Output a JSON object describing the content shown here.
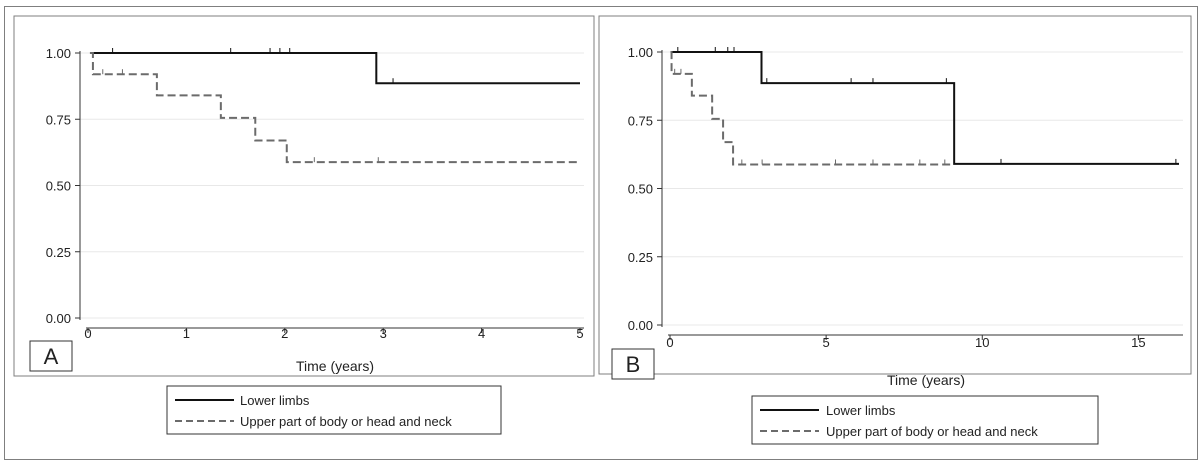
{
  "figure": {
    "panels": [
      {
        "panel_label": "A",
        "legend": {
          "lower_label": "Lower limbs",
          "upper_label": "Upper part of body or head and neck"
        }
      },
      {
        "panel_label": "B",
        "legend": {
          "lower_label": "Lower limbs",
          "upper_label": "Upper part of body or head and neck"
        }
      }
    ]
  },
  "colors": {
    "lower_series": "#111111",
    "upper_series": "#6b6b6b",
    "grid": "#e8e8e8",
    "frame": "#7f7f7f"
  },
  "chart_data": [
    {
      "type": "line",
      "subtype": "kaplan-meier step",
      "panel": "A",
      "xlabel": "Time (years)",
      "ylabel": "",
      "xlim": [
        0,
        5
      ],
      "ylim": [
        0,
        1
      ],
      "xticks": [
        0,
        1,
        2,
        3,
        4,
        5
      ],
      "yticks": [
        0.0,
        0.25,
        0.5,
        0.75,
        1.0
      ],
      "grid": "horizontal",
      "legend_position": "bottom",
      "series": [
        {
          "name": "Lower limbs",
          "style": "solid",
          "steps": [
            [
              0.02,
              1.0
            ],
            [
              2.93,
              0.886
            ],
            [
              5.0,
              0.886
            ]
          ],
          "censored": [
            [
              0.25,
              1.0
            ],
            [
              1.45,
              1.0
            ],
            [
              1.85,
              1.0
            ],
            [
              1.95,
              1.0
            ],
            [
              2.05,
              1.0
            ],
            [
              3.1,
              0.886
            ]
          ]
        },
        {
          "name": "Upper part of body or head and neck",
          "style": "dashed",
          "steps": [
            [
              0.02,
              1.0
            ],
            [
              0.05,
              0.92
            ],
            [
              0.7,
              0.84
            ],
            [
              1.35,
              0.755
            ],
            [
              1.7,
              0.67
            ],
            [
              2.02,
              0.588
            ],
            [
              5.0,
              0.588
            ]
          ],
          "censored": [
            [
              0.15,
              0.92
            ],
            [
              0.35,
              0.92
            ],
            [
              2.3,
              0.588
            ],
            [
              2.95,
              0.588
            ]
          ]
        }
      ]
    },
    {
      "type": "line",
      "subtype": "kaplan-meier step",
      "panel": "B",
      "xlabel": "Time (years)",
      "ylabel": "",
      "xlim": [
        0,
        16.3
      ],
      "ylim": [
        0,
        1
      ],
      "xticks": [
        0,
        5,
        10,
        15
      ],
      "yticks": [
        0.0,
        0.25,
        0.5,
        0.75,
        1.0
      ],
      "grid": "horizontal",
      "legend_position": "bottom",
      "series": [
        {
          "name": "Lower limbs",
          "style": "solid",
          "steps": [
            [
              0.02,
              1.0
            ],
            [
              2.93,
              0.886
            ],
            [
              9.1,
              0.59
            ],
            [
              16.3,
              0.59
            ]
          ],
          "censored": [
            [
              0.25,
              1.0
            ],
            [
              1.45,
              1.0
            ],
            [
              1.85,
              1.0
            ],
            [
              2.05,
              1.0
            ],
            [
              3.1,
              0.886
            ],
            [
              5.8,
              0.886
            ],
            [
              6.5,
              0.886
            ],
            [
              8.85,
              0.886
            ],
            [
              10.6,
              0.59
            ],
            [
              16.2,
              0.59
            ]
          ]
        },
        {
          "name": "Upper part of body or head and neck",
          "style": "dashed",
          "steps": [
            [
              0.02,
              1.0
            ],
            [
              0.05,
              0.92
            ],
            [
              0.7,
              0.84
            ],
            [
              1.35,
              0.755
            ],
            [
              1.7,
              0.67
            ],
            [
              2.02,
              0.588
            ],
            [
              9.0,
              0.588
            ]
          ],
          "censored": [
            [
              0.15,
              0.92
            ],
            [
              0.35,
              0.92
            ],
            [
              2.3,
              0.588
            ],
            [
              2.95,
              0.588
            ],
            [
              5.3,
              0.588
            ],
            [
              6.5,
              0.588
            ],
            [
              8.0,
              0.588
            ],
            [
              8.8,
              0.588
            ]
          ]
        }
      ]
    }
  ]
}
